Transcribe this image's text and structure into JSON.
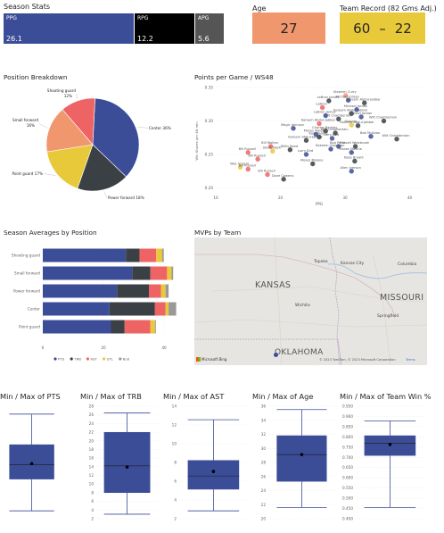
{
  "kpis": {
    "season_stats": {
      "title": "Season Stats",
      "ppg": {
        "label": "PPG",
        "value": "26.1",
        "color": "#3c4d98"
      },
      "rpg": {
        "label": "RPG",
        "value": "12.2",
        "color": "#000000"
      },
      "apg": {
        "label": "APG",
        "value": "5.6",
        "color": "#555555"
      }
    },
    "age": {
      "title": "Age",
      "value": "27",
      "color": "#f0976e"
    },
    "team_record": {
      "title": "Team Record (82 Gms Adj.)",
      "wins": "60",
      "dash": "–",
      "losses": "22",
      "color": "#e8c93a"
    }
  },
  "pie": {
    "title": "Position Breakdown",
    "slices": [
      {
        "label": "Center 36%",
        "pct": 36,
        "color": "#3c4d98"
      },
      {
        "label": "Power forward 18%",
        "pct": 18,
        "color": "#3a4044"
      },
      {
        "label": "Point guard 17%",
        "pct": 17,
        "color": "#e8c93a"
      },
      {
        "label": "Small forward 16%",
        "pct": 16,
        "color": "#f0976e"
      },
      {
        "label": "Shooting guard 12%",
        "pct": 12,
        "color": "#ee6464"
      }
    ]
  },
  "scatter": {
    "title": "Points per Game / WS48",
    "xlabel": "PPG",
    "ylabel": "Win Shares per 48 min",
    "xticks": [
      "10",
      "20",
      "30",
      "40"
    ],
    "yticks": [
      "0.35",
      "0.30",
      "0.25",
      "0.20"
    ],
    "xlim": [
      10,
      42
    ],
    "ylim": [
      0.19,
      0.35
    ],
    "points": [
      {
        "name": "Stephen Curry",
        "x": 30.1,
        "y": 0.338,
        "color": "#f0976e"
      },
      {
        "name": "LeBron James",
        "x": 27.5,
        "y": 0.33,
        "color": "#3a4044"
      },
      {
        "name": "Michael Jordan",
        "x": 30.5,
        "y": 0.331,
        "color": "#3c4d98"
      },
      {
        "name": "Kareem Abdul-Jabbar",
        "x": 33.0,
        "y": 0.327,
        "color": "#3a4044"
      },
      {
        "name": "LeBron",
        "x": 26.5,
        "y": 0.32,
        "color": "#ee6464"
      },
      {
        "name": "Michael Jordan",
        "x": 31.8,
        "y": 0.317,
        "color": "#3c4d98"
      },
      {
        "name": "Kareem Abdul-Jabbar",
        "x": 31.0,
        "y": 0.311,
        "color": "#3a4044"
      },
      {
        "name": "LeBron James",
        "x": 27.0,
        "y": 0.308,
        "color": "#3c4d98"
      },
      {
        "name": "Michael Jordan",
        "x": 32.5,
        "y": 0.306,
        "color": "#3c4d98"
      },
      {
        "name": "Wilt Chamberlain",
        "x": 29.0,
        "y": 0.303,
        "color": "#3a4044"
      },
      {
        "name": "Kareem Abdul-Jabbar",
        "x": 26.0,
        "y": 0.296,
        "color": "#ee6464"
      },
      {
        "name": "Giannis",
        "x": 31.0,
        "y": 0.294,
        "color": "#e8c93a"
      },
      {
        "name": "Wilt Chamberlain",
        "x": 36.0,
        "y": 0.3,
        "color": "#3a4044"
      },
      {
        "name": "Kareem Abdul-Jabbar",
        "x": 32.0,
        "y": 0.293,
        "color": "#3a4044"
      },
      {
        "name": "Magic Johnson",
        "x": 22.0,
        "y": 0.289,
        "color": "#3c4d98"
      },
      {
        "name": "Charles Barkley",
        "x": 27.0,
        "y": 0.285,
        "color": "#3a4044"
      },
      {
        "name": "Moses Malone",
        "x": 25.5,
        "y": 0.28,
        "color": "#3c4d98"
      },
      {
        "name": "Wilt Chamberlain",
        "x": 28.5,
        "y": 0.282,
        "color": "#3a4044"
      },
      {
        "name": "Karl Malone",
        "x": 26.0,
        "y": 0.276,
        "color": "#3a4044"
      },
      {
        "name": "Larry Bird",
        "x": 28.0,
        "y": 0.274,
        "color": "#3c4d98"
      },
      {
        "name": "Kareem Abdul-Jabbar",
        "x": 24.0,
        "y": 0.271,
        "color": "#3a4044"
      },
      {
        "name": "Bob Pettit",
        "x": 29.0,
        "y": 0.262,
        "color": "#3c4d98"
      },
      {
        "name": "Bob McAdoo",
        "x": 34.0,
        "y": 0.277,
        "color": "#3c4d98"
      },
      {
        "name": "Wilt Chamberlain",
        "x": 38.0,
        "y": 0.273,
        "color": "#3a4044"
      },
      {
        "name": "Russell Westbrook",
        "x": 31.6,
        "y": 0.262,
        "color": "#3a4044"
      },
      {
        "name": "Bill Walton",
        "x": 18.5,
        "y": 0.262,
        "color": "#ee6464"
      },
      {
        "name": "Steve Nash",
        "x": 18.8,
        "y": 0.255,
        "color": "#e8c93a"
      },
      {
        "name": "Willis Reed",
        "x": 21.5,
        "y": 0.257,
        "color": "#3a4044"
      },
      {
        "name": "Bill Russell",
        "x": 15.0,
        "y": 0.253,
        "color": "#ee6464"
      },
      {
        "name": "Hakeem Olajuwon",
        "x": 27.8,
        "y": 0.258,
        "color": "#3c4d98"
      },
      {
        "name": "Moses Malone",
        "x": 31.0,
        "y": 0.253,
        "color": "#3c4d98"
      },
      {
        "name": "Larry Bird",
        "x": 24.0,
        "y": 0.25,
        "color": "#3c4d98"
      },
      {
        "name": "Bill Russell",
        "x": 16.5,
        "y": 0.243,
        "color": "#ee6464"
      },
      {
        "name": "Kobe Bryant",
        "x": 31.5,
        "y": 0.24,
        "color": "#3a4044"
      },
      {
        "name": "Moses Malone",
        "x": 25.0,
        "y": 0.236,
        "color": "#3a4044"
      },
      {
        "name": "Wes Unseld",
        "x": 13.8,
        "y": 0.231,
        "color": "#e8c93a"
      },
      {
        "name": "Bill Russell",
        "x": 15.0,
        "y": 0.228,
        "color": "#ee6464"
      },
      {
        "name": "Allen Iverson",
        "x": 31.0,
        "y": 0.225,
        "color": "#3c4d98"
      },
      {
        "name": "Bill Russell",
        "x": 18.0,
        "y": 0.22,
        "color": "#ee6464"
      },
      {
        "name": "Dave Cowens",
        "x": 20.5,
        "y": 0.213,
        "color": "#3a4044"
      }
    ]
  },
  "bars": {
    "title": "Season Averages by Position",
    "xticks": [
      "0",
      "20",
      "40"
    ],
    "xlim": [
      0,
      45
    ],
    "categories": [
      "Shooting guard",
      "Small forward",
      "Power forward",
      "Center",
      "Point guard"
    ],
    "series": [
      {
        "name": "PTS",
        "color": "#3c4d98",
        "values": [
          27.4,
          29.5,
          24.5,
          22.0,
          22.5
        ]
      },
      {
        "name": "TRB",
        "color": "#3a4044",
        "values": [
          4.5,
          6.0,
          10.5,
          15.0,
          4.5
        ]
      },
      {
        "name": "AST",
        "color": "#ee6464",
        "values": [
          5.5,
          5.5,
          4.0,
          3.5,
          8.5
        ]
      },
      {
        "name": "STL",
        "color": "#e8c93a",
        "values": [
          2.0,
          1.5,
          1.5,
          1.0,
          1.5
        ]
      },
      {
        "name": "BLK",
        "color": "#999999",
        "values": [
          0.5,
          0.5,
          1.0,
          2.5,
          0.3
        ]
      }
    ]
  },
  "map": {
    "title": "MVPs  by Team",
    "labels": {
      "kansas": "KANSAS",
      "missouri": "MISSOURI",
      "oklahoma": "OKLAHOMA",
      "topeka": "Topeka",
      "kansas_city": "Kansas City",
      "columbia": "Columbia",
      "wichita": "Wichita",
      "springfield": "Springfield"
    },
    "attribution": "© 2023 TomTom, © 2023 Microsoft Corporation",
    "terms": "Terms",
    "bing": "Microsoft Bing"
  },
  "boxplots": [
    {
      "title": "Min / Max of PTS",
      "yticks": [],
      "lo": 0.07,
      "q1": 0.35,
      "med": 0.48,
      "q3": 0.66,
      "hi": 0.93,
      "mean": 0.49
    },
    {
      "title": "Min / Max of TRB",
      "yticks": [
        "28",
        "26",
        "24",
        "22",
        "20",
        "18",
        "16",
        "14",
        "12",
        "10",
        "8",
        "6",
        "4",
        "2"
      ],
      "lo": 0.04,
      "q1": 0.23,
      "med": 0.47,
      "q3": 0.77,
      "hi": 0.94,
      "mean": 0.46
    },
    {
      "title": "Min / Max of AST",
      "yticks": [
        "14",
        "12",
        "10",
        "8",
        "6",
        "4",
        "2"
      ],
      "lo": 0.07,
      "q1": 0.26,
      "med": 0.38,
      "q3": 0.52,
      "hi": 0.88,
      "mean": 0.42
    },
    {
      "title": "Min / Max of Age",
      "yticks": [
        "36",
        "34",
        "32",
        "30",
        "28",
        "26",
        "24",
        "22",
        "20"
      ],
      "lo": 0.1,
      "q1": 0.33,
      "med": 0.57,
      "q3": 0.74,
      "hi": 0.97,
      "mean": 0.57
    },
    {
      "title": "Min / Max of Team Win %",
      "yticks": [
        "0.950",
        "0.900",
        "0.850",
        "0.800",
        "0.750",
        "0.700",
        "0.650",
        "0.600",
        "0.550",
        "0.500",
        "0.450",
        "0.400"
      ],
      "lo": 0.1,
      "q1": 0.56,
      "med": 0.67,
      "q3": 0.74,
      "hi": 0.87,
      "mean": 0.66
    }
  ],
  "colors": {
    "accent": "#3c4d98",
    "divider": "#c8c6c4"
  }
}
